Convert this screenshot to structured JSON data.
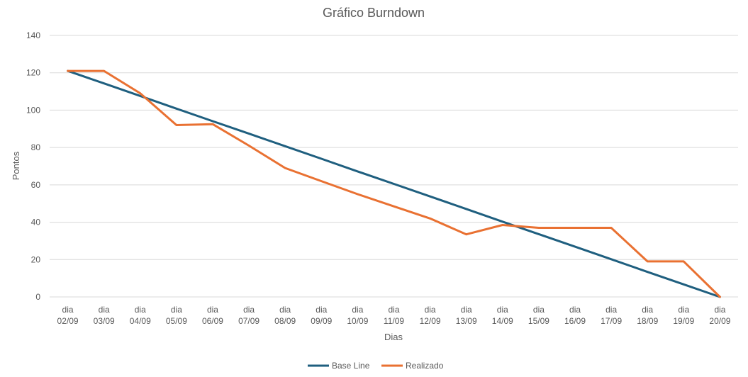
{
  "chart_data": {
    "type": "line",
    "title": "Gráfico Burndown",
    "xlabel": "Dias",
    "ylabel": "Pontos",
    "ylim": [
      0,
      140
    ],
    "yticks": [
      0,
      20,
      40,
      60,
      80,
      100,
      120,
      140
    ],
    "grid": true,
    "legend_position": "bottom",
    "categories": [
      [
        "dia",
        "02/09"
      ],
      [
        "dia",
        "03/09"
      ],
      [
        "dia",
        "04/09"
      ],
      [
        "dia",
        "05/09"
      ],
      [
        "dia",
        "06/09"
      ],
      [
        "dia",
        "07/09"
      ],
      [
        "dia",
        "08/09"
      ],
      [
        "dia",
        "09/09"
      ],
      [
        "dia",
        "10/09"
      ],
      [
        "dia",
        "11/09"
      ],
      [
        "dia",
        "12/09"
      ],
      [
        "dia",
        "13/09"
      ],
      [
        "dia",
        "14/09"
      ],
      [
        "dia",
        "15/09"
      ],
      [
        "dia",
        "16/09"
      ],
      [
        "dia",
        "17/09"
      ],
      [
        "dia",
        "18/09"
      ],
      [
        "dia",
        "19/09"
      ],
      [
        "dia",
        "20/09"
      ]
    ],
    "series": [
      {
        "name": "Base Line",
        "color": "#1f5f7f",
        "values": [
          121,
          114.3,
          107.6,
          100.8,
          94.1,
          87.4,
          80.7,
          74,
          67.2,
          60.5,
          53.8,
          47.1,
          40.3,
          33.6,
          26.9,
          20.2,
          13.4,
          6.7,
          0
        ]
      },
      {
        "name": "Realizado",
        "color": "#e97132",
        "values": [
          121,
          121,
          109,
          92,
          92.5,
          81,
          69,
          62,
          55,
          48.5,
          42,
          33.5,
          38.5,
          37,
          37,
          37,
          19,
          19,
          0
        ]
      }
    ]
  }
}
